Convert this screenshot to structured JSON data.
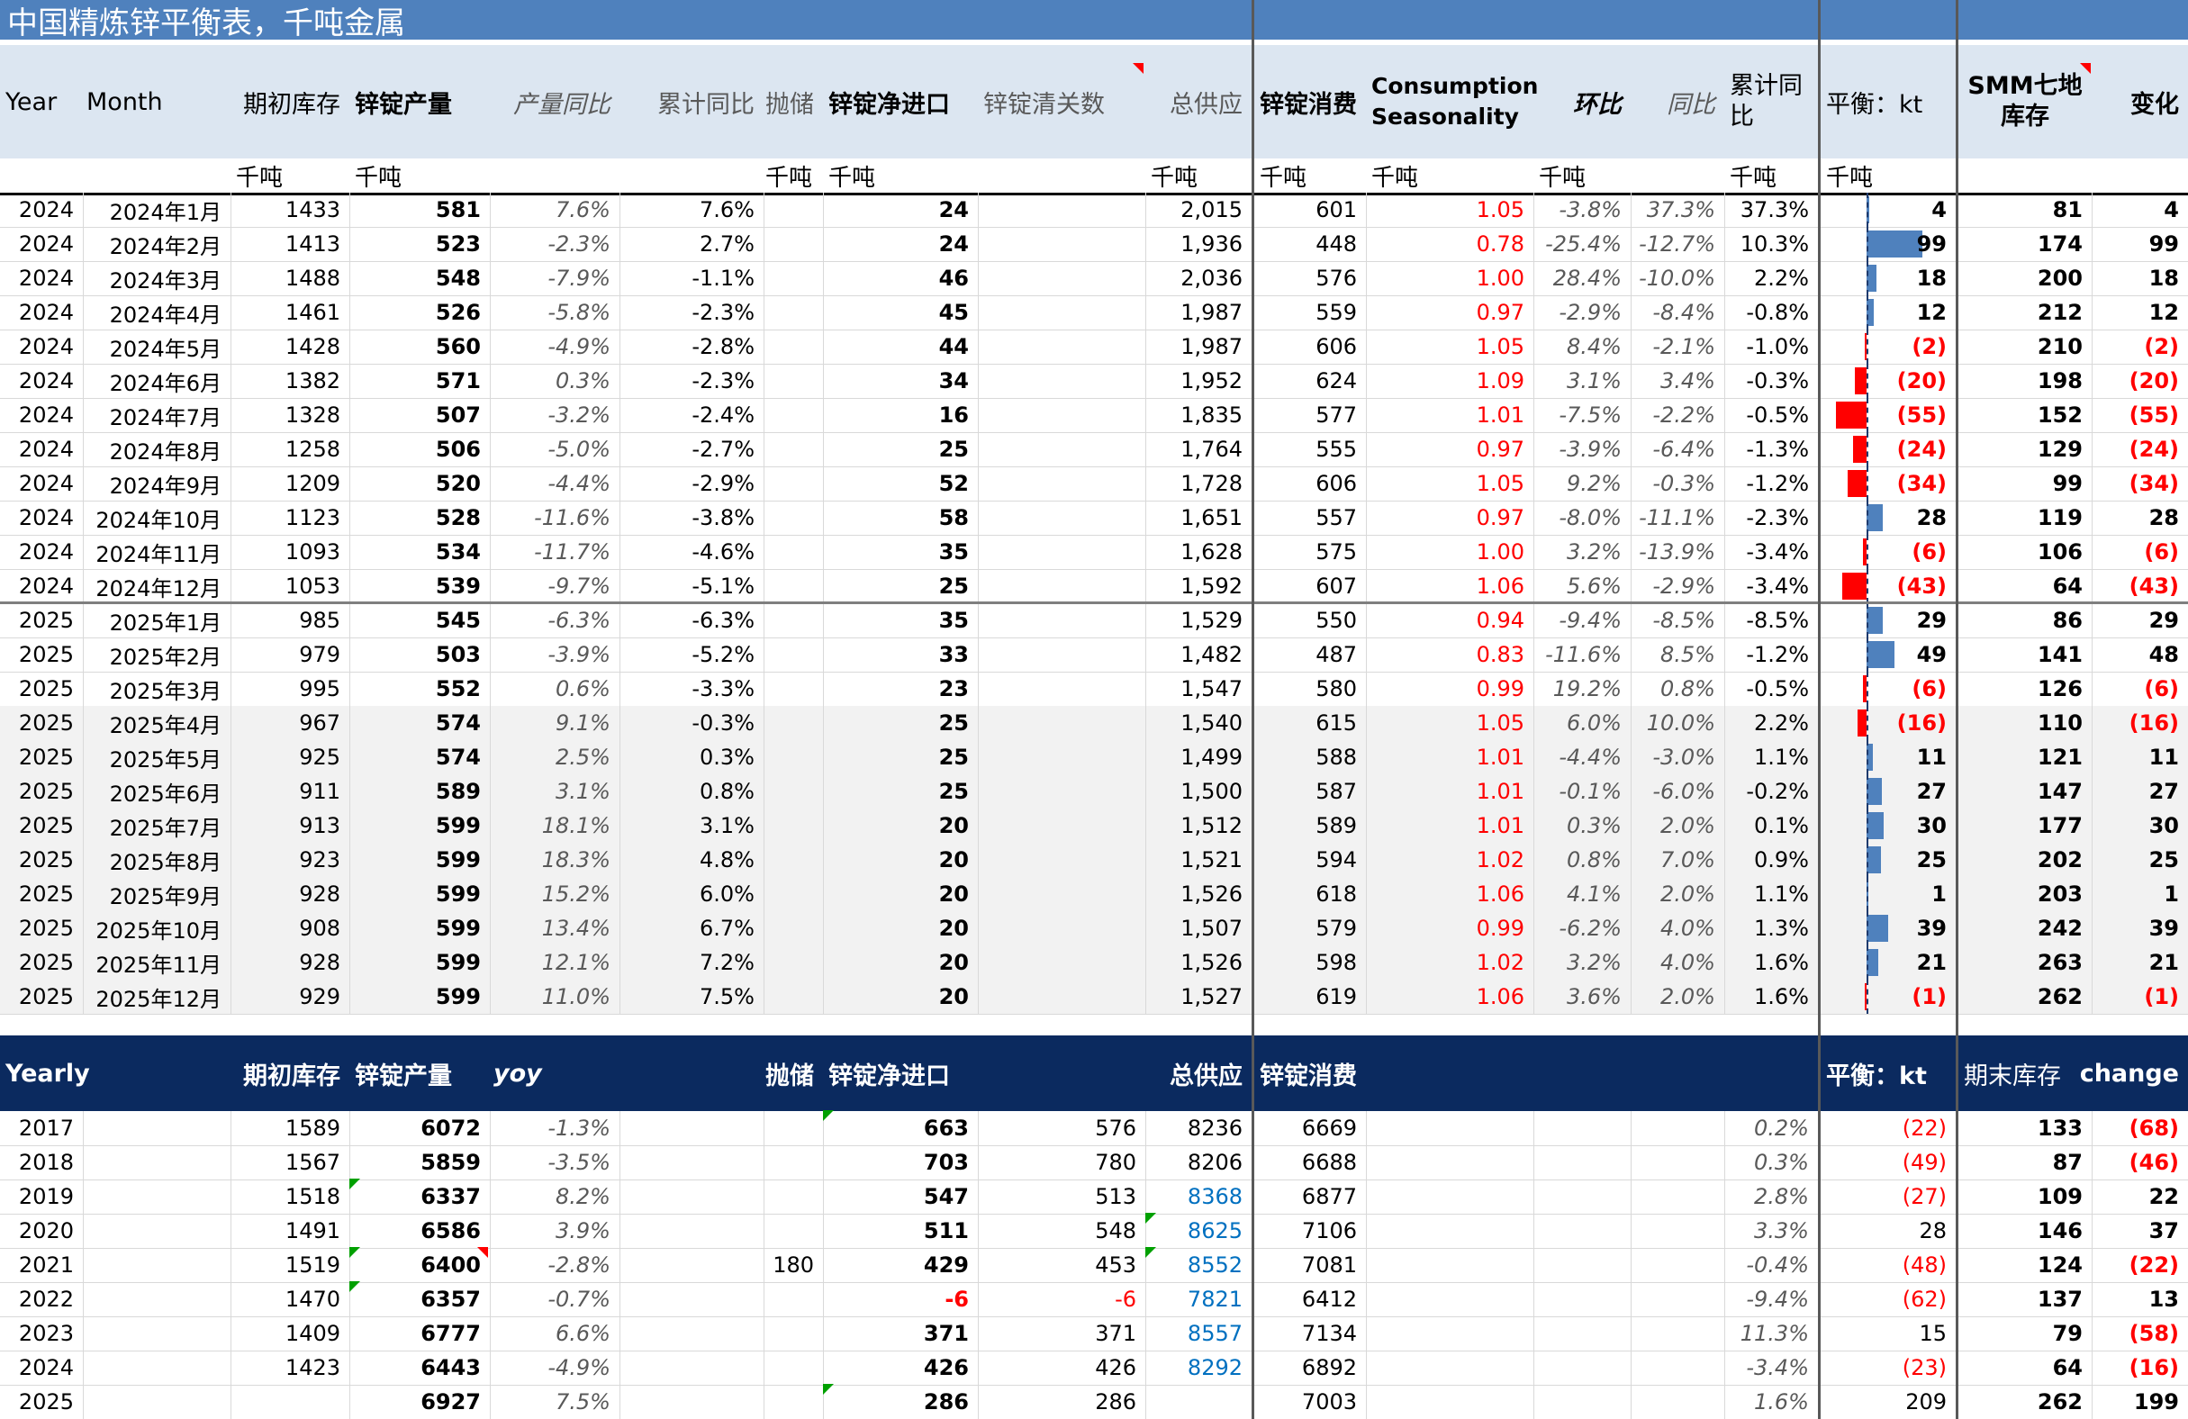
{
  "title": "中国精炼锌平衡表，千吨金属",
  "header": {
    "year": "Year",
    "month": "Month",
    "opening_stock": "期初库存",
    "output": "锌锭产量",
    "output_yoy": "产量同比",
    "cum_yoy": "累计同比",
    "reserve": "抛储",
    "net_import": "锌锭净进口",
    "customs": "锌锭清关数",
    "total_supply": "总供应",
    "consumption": "锌锭消费",
    "seasonality": "Consumption Seasonality",
    "mom": "环比",
    "yoy": "同比",
    "cum_yoy2": "累计同比",
    "balance": "平衡：kt",
    "smm_stock": "SMM七地库存",
    "change": "变化"
  },
  "units": {
    "opening_stock": "千吨",
    "output": "千吨",
    "reserve": "千吨",
    "net_import": "千吨",
    "total_supply": "千吨",
    "consumption": "千吨",
    "seasonality": "千吨",
    "mom": "千吨",
    "cum_yoy2": "千吨",
    "balance": "千吨"
  },
  "monthly": [
    {
      "year": "2024",
      "month": "2024年1月",
      "open": "1433",
      "out": "581",
      "oy": "7.6%",
      "cy": "7.6%",
      "imp": "24",
      "sup": "2,015",
      "con": "601",
      "sea": "1.05",
      "mom": "-3.8%",
      "yoy": "37.3%",
      "cy2": "37.3%",
      "bal": "4",
      "balv": 4,
      "stk": "81",
      "chg": "4"
    },
    {
      "year": "2024",
      "month": "2024年2月",
      "open": "1413",
      "out": "523",
      "oy": "-2.3%",
      "cy": "2.7%",
      "imp": "24",
      "sup": "1,936",
      "con": "448",
      "sea": "0.78",
      "mom": "-25.4%",
      "yoy": "-12.7%",
      "cy2": "10.3%",
      "bal": "99",
      "balv": 99,
      "stk": "174",
      "chg": "99"
    },
    {
      "year": "2024",
      "month": "2024年3月",
      "open": "1488",
      "out": "548",
      "oy": "-7.9%",
      "cy": "-1.1%",
      "imp": "46",
      "sup": "2,036",
      "con": "576",
      "sea": "1.00",
      "mom": "28.4%",
      "yoy": "-10.0%",
      "cy2": "2.2%",
      "bal": "18",
      "balv": 18,
      "stk": "200",
      "chg": "18"
    },
    {
      "year": "2024",
      "month": "2024年4月",
      "open": "1461",
      "out": "526",
      "oy": "-5.8%",
      "cy": "-2.3%",
      "imp": "45",
      "sup": "1,987",
      "con": "559",
      "sea": "0.97",
      "mom": "-2.9%",
      "yoy": "-8.4%",
      "cy2": "-0.8%",
      "bal": "12",
      "balv": 12,
      "stk": "212",
      "chg": "12"
    },
    {
      "year": "2024",
      "month": "2024年5月",
      "open": "1428",
      "out": "560",
      "oy": "-4.9%",
      "cy": "-2.8%",
      "imp": "44",
      "sup": "1,987",
      "con": "606",
      "sea": "1.05",
      "mom": "8.4%",
      "yoy": "-2.1%",
      "cy2": "-1.0%",
      "bal": "(2)",
      "balv": -2,
      "stk": "210",
      "chg": "(2)"
    },
    {
      "year": "2024",
      "month": "2024年6月",
      "open": "1382",
      "out": "571",
      "oy": "0.3%",
      "cy": "-2.3%",
      "imp": "34",
      "sup": "1,952",
      "con": "624",
      "sea": "1.09",
      "mom": "3.1%",
      "yoy": "3.4%",
      "cy2": "-0.3%",
      "bal": "(20)",
      "balv": -20,
      "stk": "198",
      "chg": "(20)"
    },
    {
      "year": "2024",
      "month": "2024年7月",
      "open": "1328",
      "out": "507",
      "oy": "-3.2%",
      "cy": "-2.4%",
      "imp": "16",
      "sup": "1,835",
      "con": "577",
      "sea": "1.01",
      "mom": "-7.5%",
      "yoy": "-2.2%",
      "cy2": "-0.5%",
      "bal": "(55)",
      "balv": -55,
      "stk": "152",
      "chg": "(55)"
    },
    {
      "year": "2024",
      "month": "2024年8月",
      "open": "1258",
      "out": "506",
      "oy": "-5.0%",
      "cy": "-2.7%",
      "imp": "25",
      "sup": "1,764",
      "con": "555",
      "sea": "0.97",
      "mom": "-3.9%",
      "yoy": "-6.4%",
      "cy2": "-1.3%",
      "bal": "(24)",
      "balv": -24,
      "stk": "129",
      "chg": "(24)"
    },
    {
      "year": "2024",
      "month": "2024年9月",
      "open": "1209",
      "out": "520",
      "oy": "-4.4%",
      "cy": "-2.9%",
      "imp": "52",
      "sup": "1,728",
      "con": "606",
      "sea": "1.05",
      "mom": "9.2%",
      "yoy": "-0.3%",
      "cy2": "-1.2%",
      "bal": "(34)",
      "balv": -34,
      "stk": "99",
      "chg": "(34)"
    },
    {
      "year": "2024",
      "month": "2024年10月",
      "open": "1123",
      "out": "528",
      "oy": "-11.6%",
      "cy": "-3.8%",
      "imp": "58",
      "sup": "1,651",
      "con": "557",
      "sea": "0.97",
      "mom": "-8.0%",
      "yoy": "-11.1%",
      "cy2": "-2.3%",
      "bal": "28",
      "balv": 28,
      "stk": "119",
      "chg": "28"
    },
    {
      "year": "2024",
      "month": "2024年11月",
      "open": "1093",
      "out": "534",
      "oy": "-11.7%",
      "cy": "-4.6%",
      "imp": "35",
      "sup": "1,628",
      "con": "575",
      "sea": "1.00",
      "mom": "3.2%",
      "yoy": "-13.9%",
      "cy2": "-3.4%",
      "bal": "(6)",
      "balv": -6,
      "stk": "106",
      "chg": "(6)"
    },
    {
      "year": "2024",
      "month": "2024年12月",
      "open": "1053",
      "out": "539",
      "oy": "-9.7%",
      "cy": "-5.1%",
      "imp": "25",
      "sup": "1,592",
      "con": "607",
      "sea": "1.06",
      "mom": "5.6%",
      "yoy": "-2.9%",
      "cy2": "-3.4%",
      "bal": "(43)",
      "balv": -43,
      "stk": "64",
      "chg": "(43)"
    },
    {
      "year": "2025",
      "month": "2025年1月",
      "open": "985",
      "out": "545",
      "oy": "-6.3%",
      "cy": "-6.3%",
      "imp": "35",
      "sup": "1,529",
      "con": "550",
      "sea": "0.94",
      "mom": "-9.4%",
      "yoy": "-8.5%",
      "cy2": "-8.5%",
      "bal": "29",
      "balv": 29,
      "stk": "86",
      "chg": "29"
    },
    {
      "year": "2025",
      "month": "2025年2月",
      "open": "979",
      "out": "503",
      "oy": "-3.9%",
      "cy": "-5.2%",
      "imp": "33",
      "sup": "1,482",
      "con": "487",
      "sea": "0.83",
      "mom": "-11.6%",
      "yoy": "8.5%",
      "cy2": "-1.2%",
      "bal": "49",
      "balv": 49,
      "stk": "141",
      "chg": "48"
    },
    {
      "year": "2025",
      "month": "2025年3月",
      "open": "995",
      "out": "552",
      "oy": "0.6%",
      "cy": "-3.3%",
      "imp": "23",
      "sup": "1,547",
      "con": "580",
      "sea": "0.99",
      "mom": "19.2%",
      "yoy": "0.8%",
      "cy2": "-0.5%",
      "bal": "(6)",
      "balv": -6,
      "stk": "126",
      "chg": "(6)"
    },
    {
      "year": "2025",
      "month": "2025年4月",
      "open": "967",
      "out": "574",
      "oy": "9.1%",
      "cy": "-0.3%",
      "imp": "25",
      "sup": "1,540",
      "con": "615",
      "sea": "1.05",
      "mom": "6.0%",
      "yoy": "10.0%",
      "cy2": "2.2%",
      "bal": "(16)",
      "balv": -16,
      "stk": "110",
      "chg": "(16)"
    },
    {
      "year": "2025",
      "month": "2025年5月",
      "open": "925",
      "out": "574",
      "oy": "2.5%",
      "cy": "0.3%",
      "imp": "25",
      "sup": "1,499",
      "con": "588",
      "sea": "1.01",
      "mom": "-4.4%",
      "yoy": "-3.0%",
      "cy2": "1.1%",
      "bal": "11",
      "balv": 11,
      "stk": "121",
      "chg": "11"
    },
    {
      "year": "2025",
      "month": "2025年6月",
      "open": "911",
      "out": "589",
      "oy": "3.1%",
      "cy": "0.8%",
      "imp": "25",
      "sup": "1,500",
      "con": "587",
      "sea": "1.01",
      "mom": "-0.1%",
      "yoy": "-6.0%",
      "cy2": "-0.2%",
      "bal": "27",
      "balv": 27,
      "stk": "147",
      "chg": "27"
    },
    {
      "year": "2025",
      "month": "2025年7月",
      "open": "913",
      "out": "599",
      "oy": "18.1%",
      "cy": "3.1%",
      "imp": "20",
      "sup": "1,512",
      "con": "589",
      "sea": "1.01",
      "mom": "0.3%",
      "yoy": "2.0%",
      "cy2": "0.1%",
      "bal": "30",
      "balv": 30,
      "stk": "177",
      "chg": "30"
    },
    {
      "year": "2025",
      "month": "2025年8月",
      "open": "923",
      "out": "599",
      "oy": "18.3%",
      "cy": "4.8%",
      "imp": "20",
      "sup": "1,521",
      "con": "594",
      "sea": "1.02",
      "mom": "0.8%",
      "yoy": "7.0%",
      "cy2": "0.9%",
      "bal": "25",
      "balv": 25,
      "stk": "202",
      "chg": "25"
    },
    {
      "year": "2025",
      "month": "2025年9月",
      "open": "928",
      "out": "599",
      "oy": "15.2%",
      "cy": "6.0%",
      "imp": "20",
      "sup": "1,526",
      "con": "618",
      "sea": "1.06",
      "mom": "4.1%",
      "yoy": "2.0%",
      "cy2": "1.1%",
      "bal": "1",
      "balv": 1,
      "stk": "203",
      "chg": "1"
    },
    {
      "year": "2025",
      "month": "2025年10月",
      "open": "908",
      "out": "599",
      "oy": "13.4%",
      "cy": "6.7%",
      "imp": "20",
      "sup": "1,507",
      "con": "579",
      "sea": "0.99",
      "mom": "-6.2%",
      "yoy": "4.0%",
      "cy2": "1.3%",
      "bal": "39",
      "balv": 39,
      "stk": "242",
      "chg": "39"
    },
    {
      "year": "2025",
      "month": "2025年11月",
      "open": "928",
      "out": "599",
      "oy": "12.1%",
      "cy": "7.2%",
      "imp": "20",
      "sup": "1,526",
      "con": "598",
      "sea": "1.02",
      "mom": "3.2%",
      "yoy": "4.0%",
      "cy2": "1.6%",
      "bal": "21",
      "balv": 21,
      "stk": "263",
      "chg": "21"
    },
    {
      "year": "2025",
      "month": "2025年12月",
      "open": "929",
      "out": "599",
      "oy": "11.0%",
      "cy": "7.5%",
      "imp": "20",
      "sup": "1,527",
      "con": "619",
      "sea": "1.06",
      "mom": "3.6%",
      "yoy": "2.0%",
      "cy2": "1.6%",
      "bal": "(1)",
      "balv": -1,
      "stk": "262",
      "chg": "(1)"
    }
  ],
  "yearly_header": {
    "label": "Yearly",
    "opening_stock": "期初库存",
    "output": "锌锭产量",
    "yoy": "yoy",
    "reserve": "抛储",
    "net_import": "锌锭净进口",
    "total_supply": "总供应",
    "consumption": "锌锭消费",
    "balance": "平衡：kt",
    "closing_stock": "期末库存",
    "change": "change"
  },
  "yearly": [
    {
      "year": "2017",
      "open": "1589",
      "out": "6072",
      "yoy": "-1.3%",
      "res": "",
      "imp": "663",
      "cus": "576",
      "sup": "8236",
      "con": "6669",
      "cy": "0.2%",
      "bal": "(22)",
      "stk": "133",
      "chg": "(68)"
    },
    {
      "year": "2018",
      "open": "1567",
      "out": "5859",
      "yoy": "-3.5%",
      "res": "",
      "imp": "703",
      "cus": "780",
      "sup": "8206",
      "con": "6688",
      "cy": "0.3%",
      "bal": "(49)",
      "stk": "87",
      "chg": "(46)"
    },
    {
      "year": "2019",
      "open": "1518",
      "out": "6337",
      "yoy": "8.2%",
      "res": "",
      "imp": "547",
      "cus": "513",
      "sup": "8368",
      "con": "6877",
      "cy": "2.8%",
      "bal": "(27)",
      "stk": "109",
      "chg": "22"
    },
    {
      "year": "2020",
      "open": "1491",
      "out": "6586",
      "yoy": "3.9%",
      "res": "",
      "imp": "511",
      "cus": "548",
      "sup": "8625",
      "con": "7106",
      "cy": "3.3%",
      "bal": "28",
      "stk": "146",
      "chg": "37"
    },
    {
      "year": "2021",
      "open": "1519",
      "out": "6400",
      "yoy": "-2.8%",
      "res": "180",
      "imp": "429",
      "cus": "453",
      "sup": "8552",
      "con": "7081",
      "cy": "-0.4%",
      "bal": "(48)",
      "stk": "124",
      "chg": "(22)"
    },
    {
      "year": "2022",
      "open": "1470",
      "out": "6357",
      "yoy": "-0.7%",
      "res": "",
      "imp": "-6",
      "cus": "-6",
      "sup": "7821",
      "con": "6412",
      "cy": "-9.4%",
      "bal": "(62)",
      "stk": "137",
      "chg": "13"
    },
    {
      "year": "2023",
      "open": "1409",
      "out": "6777",
      "yoy": "6.6%",
      "res": "",
      "imp": "371",
      "cus": "371",
      "sup": "8557",
      "con": "7134",
      "cy": "11.3%",
      "bal": "15",
      "stk": "79",
      "chg": "(58)"
    },
    {
      "year": "2024",
      "open": "1423",
      "out": "6443",
      "yoy": "-4.9%",
      "res": "",
      "imp": "426",
      "cus": "426",
      "sup": "8292",
      "con": "6892",
      "cy": "-3.4%",
      "bal": "(23)",
      "stk": "64",
      "chg": "(16)"
    },
    {
      "year": "2025",
      "open": "",
      "out": "6927",
      "yoy": "7.5%",
      "res": "",
      "imp": "286",
      "cus": "286",
      "sup": "",
      "con": "7003",
      "cy": "1.6%",
      "bal": "209",
      "stk": "262",
      "chg": "199"
    }
  ],
  "colors": {
    "title_bar": "#4f81bd",
    "header_bg": "#dce6f1",
    "yearly_header_bg": "#0b2a5f",
    "bar_positive": "#4f81bd",
    "bar_negative": "#ff0000",
    "negative_text": "#ff0000",
    "link_text": "#0070c0"
  }
}
